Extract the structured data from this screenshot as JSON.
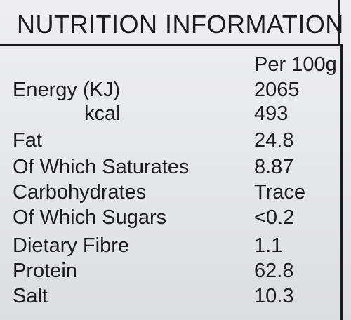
{
  "title": "NUTRITION INFORMATION",
  "column_header": "Per 100g",
  "rows": [
    {
      "nutrient": "Energy (KJ)",
      "value": "2065"
    },
    {
      "nutrient": "kcal",
      "value": "493"
    },
    {
      "nutrient": "Fat",
      "value": "24.8"
    },
    {
      "nutrient": "Of Which Saturates",
      "value": "8.87"
    },
    {
      "nutrient": "Carbohydrates",
      "value": "Trace"
    },
    {
      "nutrient": "Of Which Sugars",
      "value": "<0.2"
    },
    {
      "nutrient": "Dietary Fibre",
      "value": "1.1"
    },
    {
      "nutrient": "Protein",
      "value": "62.8"
    },
    {
      "nutrient": "Salt",
      "value": "10.3"
    }
  ]
}
